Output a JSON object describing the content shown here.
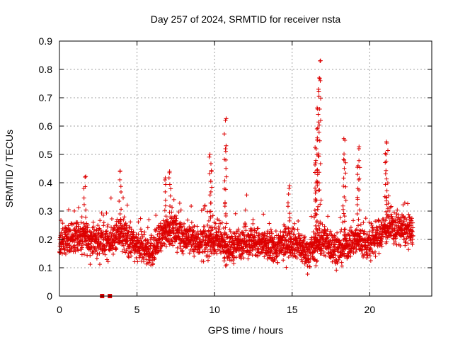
{
  "chart_data": {
    "type": "scatter",
    "title": "Day 257 of 2024, SRMTID for receiver nsta",
    "xlabel": "GPS time / hours",
    "ylabel": "SRMTID / TECUs",
    "xlim": [
      0,
      24
    ],
    "ylim": [
      0,
      0.9
    ],
    "xticks": [
      0,
      5,
      10,
      15,
      20
    ],
    "yticks": [
      0,
      0.1,
      0.2,
      0.3,
      0.4,
      0.5,
      0.6,
      0.7,
      0.8,
      0.9
    ],
    "grid": true,
    "marker": "+",
    "series_color": "#dd0000",
    "zero_points": [
      {
        "x": 2.75,
        "y": 0
      },
      {
        "x": 3.25,
        "y": 0
      }
    ],
    "baseline_profile": [
      [
        0,
        0.19
      ],
      [
        1,
        0.21
      ],
      [
        2,
        0.2
      ],
      [
        3,
        0.19
      ],
      [
        4,
        0.22
      ],
      [
        5,
        0.17
      ],
      [
        6,
        0.16
      ],
      [
        7,
        0.24
      ],
      [
        8,
        0.21
      ],
      [
        9,
        0.19
      ],
      [
        10,
        0.2
      ],
      [
        11,
        0.17
      ],
      [
        12,
        0.2
      ],
      [
        13,
        0.18
      ],
      [
        14,
        0.17
      ],
      [
        15,
        0.2
      ],
      [
        16,
        0.15
      ],
      [
        17,
        0.2
      ],
      [
        18,
        0.16
      ],
      [
        19,
        0.2
      ],
      [
        20,
        0.18
      ],
      [
        21,
        0.24
      ],
      [
        22,
        0.24
      ],
      [
        22.8,
        0.22
      ]
    ],
    "spikes": [
      {
        "x": 1.65,
        "y": 0.42
      },
      {
        "x": 3.9,
        "y": 0.44
      },
      {
        "x": 6.8,
        "y": 0.41
      },
      {
        "x": 7.1,
        "y": 0.44
      },
      {
        "x": 9.7,
        "y": 0.5
      },
      {
        "x": 9.8,
        "y": 0.44
      },
      {
        "x": 10.7,
        "y": 0.62
      },
      {
        "x": 10.7,
        "y": 0.52
      },
      {
        "x": 14.8,
        "y": 0.38
      },
      {
        "x": 16.8,
        "y": 0.83
      },
      {
        "x": 16.75,
        "y": 0.77
      },
      {
        "x": 16.7,
        "y": 0.73
      },
      {
        "x": 16.65,
        "y": 0.66
      },
      {
        "x": 16.6,
        "y": 0.59
      },
      {
        "x": 16.55,
        "y": 0.52
      },
      {
        "x": 16.5,
        "y": 0.47
      },
      {
        "x": 18.4,
        "y": 0.55
      },
      {
        "x": 18.35,
        "y": 0.48
      },
      {
        "x": 19.3,
        "y": 0.52
      },
      {
        "x": 19.25,
        "y": 0.46
      },
      {
        "x": 21.1,
        "y": 0.54
      },
      {
        "x": 21.05,
        "y": 0.5
      }
    ]
  }
}
